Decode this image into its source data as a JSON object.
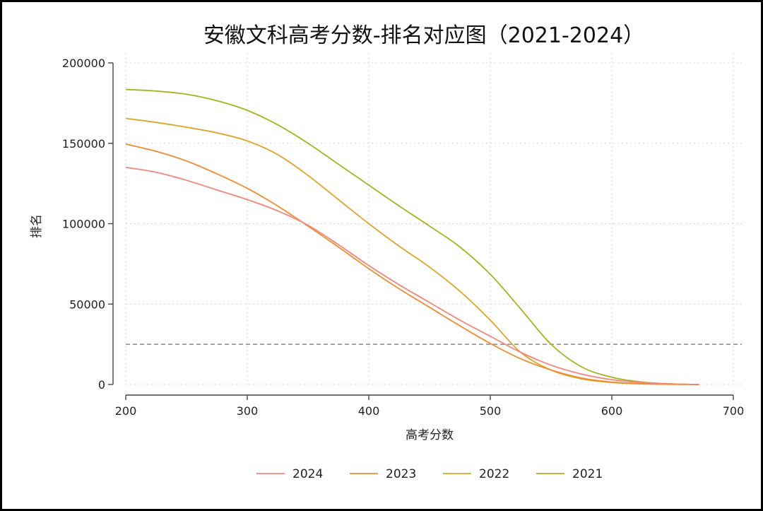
{
  "chart_data": {
    "type": "line",
    "title": "安徽文科高考分数-排名对应图（2021-2024）",
    "xlabel": "高考分数",
    "ylabel": "排名",
    "xlim": [
      200,
      700
    ],
    "ylim": [
      0,
      200000
    ],
    "x_ticks": [
      200,
      300,
      400,
      500,
      600,
      700
    ],
    "y_ticks": [
      0,
      50000,
      100000,
      150000,
      200000
    ],
    "grid": true,
    "legend_position": "bottom",
    "reference_line": {
      "orientation": "horizontal",
      "y": 25000,
      "style": "dashed",
      "color": "#8a8a8a"
    },
    "series": [
      {
        "name": "2024",
        "color": "#f4857a",
        "x": [
          200,
          225,
          250,
          275,
          300,
          325,
          350,
          375,
          400,
          425,
          450,
          475,
          500,
          525,
          550,
          575,
          600,
          625,
          650,
          672
        ],
        "y": [
          135000,
          132000,
          127000,
          121000,
          115000,
          108000,
          99000,
          87000,
          74000,
          62000,
          51000,
          40000,
          30000,
          20000,
          12000,
          6500,
          3000,
          1200,
          300,
          0
        ]
      },
      {
        "name": "2023",
        "color": "#f08c2e",
        "x": [
          200,
          225,
          250,
          275,
          300,
          325,
          350,
          375,
          400,
          425,
          450,
          475,
          500,
          525,
          550,
          575,
          600,
          625,
          650,
          672
        ],
        "y": [
          149500,
          145000,
          139000,
          131000,
          122000,
          111000,
          98500,
          85500,
          72000,
          59500,
          48000,
          36500,
          25500,
          16000,
          9000,
          4000,
          1500,
          500,
          100,
          0
        ]
      },
      {
        "name": "2022",
        "color": "#dea52a",
        "x": [
          200,
          225,
          250,
          275,
          300,
          325,
          350,
          375,
          400,
          425,
          450,
          475,
          500,
          525,
          550,
          575,
          600,
          625,
          650,
          672
        ],
        "y": [
          165500,
          163000,
          160000,
          156500,
          151500,
          143000,
          130000,
          115000,
          100000,
          86000,
          73000,
          58000,
          40000,
          20000,
          9000,
          3500,
          1200,
          400,
          100,
          0
        ]
      },
      {
        "name": "2021",
        "color": "#a8b21e",
        "x": [
          200,
          225,
          250,
          275,
          300,
          325,
          350,
          375,
          400,
          425,
          450,
          475,
          500,
          525,
          550,
          575,
          600,
          625,
          650,
          672
        ],
        "y": [
          183500,
          182500,
          180500,
          176500,
          170500,
          161500,
          150000,
          137000,
          124000,
          111000,
          98500,
          85500,
          68500,
          47000,
          25000,
          11000,
          4500,
          1500,
          400,
          0
        ]
      }
    ]
  }
}
